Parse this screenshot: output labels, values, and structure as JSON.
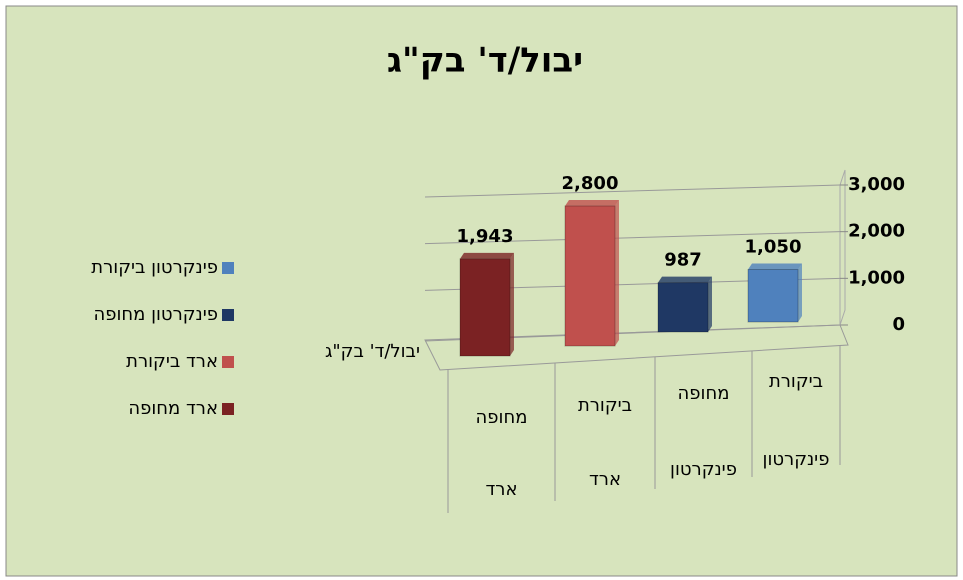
{
  "chart_data": {
    "type": "bar3d",
    "title": "יבול/ד' בק\"ג",
    "categories": [
      "ביקורת",
      "מחופה",
      "ביקורת",
      "מחופה"
    ],
    "category_groups": [
      "פינקרטון",
      "פינקרטון",
      "ארד",
      "ארד"
    ],
    "series_axis_label": "יבול/ד' בק\"ג",
    "series": [
      {
        "name": "פינקרטון ביקורת",
        "color": "#4f81bd",
        "values": [
          1050,
          null,
          null,
          null
        ],
        "value_labels": [
          "1,050",
          null,
          null,
          null
        ]
      },
      {
        "name": "פינקרטון מחופה",
        "color": "#1f3864",
        "values": [
          null,
          987,
          null,
          null
        ],
        "value_labels": [
          null,
          "987",
          null,
          null
        ]
      },
      {
        "name": "ארד ביקורת",
        "color": "#c0504d",
        "values": [
          null,
          null,
          2800,
          null
        ],
        "value_labels": [
          null,
          null,
          "2,800",
          null
        ]
      },
      {
        "name": "ארד מחופה",
        "color": "#7b2223",
        "values": [
          null,
          null,
          null,
          1943
        ],
        "value_labels": [
          null,
          null,
          null,
          "1,943"
        ]
      }
    ],
    "ylim": [
      0,
      3000
    ],
    "yticks": [
      0,
      {
        "value": 1000,
        "label": "1,000"
      },
      {
        "value": 2000,
        "label": "2,000"
      },
      {
        "value": 3000,
        "label": "3,000"
      }
    ],
    "grid": true
  }
}
